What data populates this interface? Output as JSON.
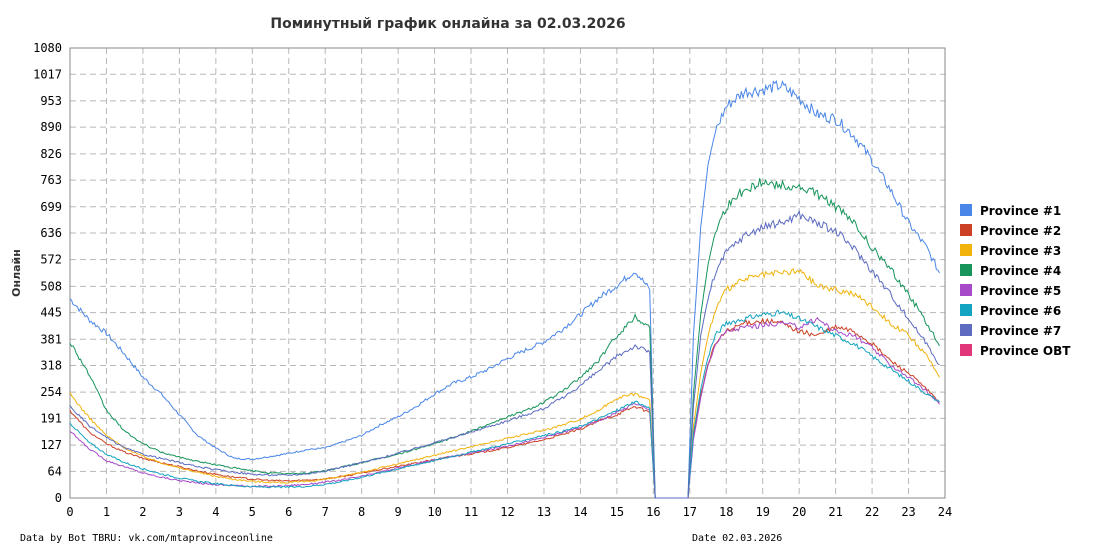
{
  "chart_data": {
    "type": "line",
    "title": "Поминутный график онлайна за 02.03.2026",
    "ylabel": "Онлайн",
    "xlabel": "",
    "xlim": [
      0,
      24
    ],
    "ylim": [
      0,
      1080
    ],
    "x_ticks": [
      "0",
      "1",
      "2",
      "3",
      "4",
      "5",
      "6",
      "7",
      "8",
      "9",
      "10",
      "11",
      "12",
      "13",
      "14",
      "15",
      "16",
      "17",
      "18",
      "19",
      "20",
      "21",
      "22",
      "23",
      "24"
    ],
    "y_ticks": [
      "0",
      "64",
      "127",
      "191",
      "254",
      "318",
      "381",
      "445",
      "508",
      "572",
      "636",
      "699",
      "763",
      "826",
      "890",
      "953",
      "1017",
      "1080"
    ],
    "grid": true,
    "legend_position": "right",
    "footer_left": "Data by Bot TBRU: vk.com/mtaprovinceonline",
    "footer_right": "Date 02.03.2026",
    "series": [
      {
        "name": "Province #1",
        "color": "#4a86e8",
        "x": [
          0,
          0.5,
          1,
          1.5,
          2,
          2.5,
          3,
          3.5,
          4,
          4.5,
          5,
          5.5,
          6,
          6.5,
          7,
          7.5,
          8,
          8.5,
          9,
          9.5,
          10,
          10.5,
          11,
          11.5,
          12,
          12.5,
          13,
          13.5,
          14,
          14.5,
          15,
          15.5,
          15.9,
          16.05,
          16.95,
          17.1,
          17.3,
          17.5,
          17.7,
          18,
          18.5,
          19,
          19.5,
          20,
          20.5,
          21,
          21.5,
          22,
          22.5,
          23,
          23.5,
          23.85
        ],
        "y": [
          478,
          430,
          395,
          345,
          290,
          250,
          200,
          150,
          120,
          95,
          93,
          100,
          107,
          116,
          120,
          135,
          150,
          175,
          195,
          220,
          250,
          275,
          290,
          310,
          335,
          355,
          375,
          405,
          440,
          480,
          510,
          545,
          500,
          0,
          0,
          390,
          650,
          800,
          880,
          940,
          975,
          980,
          990,
          960,
          920,
          910,
          870,
          810,
          740,
          660,
          600,
          540
        ]
      },
      {
        "name": "Province #2",
        "color": "#cc4125",
        "x": [
          0,
          0.5,
          1,
          1.5,
          2,
          2.5,
          3,
          3.5,
          4,
          4.5,
          5,
          5.5,
          6,
          6.5,
          7,
          7.5,
          8,
          8.5,
          9,
          9.5,
          10,
          10.5,
          11,
          11.5,
          12,
          12.5,
          13,
          13.5,
          14,
          14.5,
          15,
          15.5,
          15.9,
          16.05,
          16.95,
          17.1,
          17.3,
          17.5,
          17.7,
          18,
          18.5,
          19,
          19.5,
          20,
          20.5,
          21,
          21.5,
          22,
          22.5,
          23,
          23.5,
          23.85
        ],
        "y": [
          210,
          160,
          130,
          110,
          95,
          85,
          75,
          65,
          57,
          50,
          45,
          42,
          41,
          43,
          46,
          52,
          60,
          68,
          76,
          84,
          92,
          100,
          106,
          113,
          121,
          130,
          140,
          152,
          165,
          185,
          200,
          220,
          205,
          0,
          0,
          150,
          250,
          320,
          370,
          400,
          420,
          425,
          420,
          400,
          390,
          410,
          400,
          370,
          330,
          300,
          260,
          230
        ]
      },
      {
        "name": "Province #3",
        "color": "#f1b30c",
        "x": [
          0,
          0.5,
          1,
          1.5,
          2,
          2.5,
          3,
          3.5,
          4,
          4.5,
          5,
          5.5,
          6,
          6.5,
          7,
          7.5,
          8,
          8.5,
          9,
          9.5,
          10,
          10.5,
          11,
          11.5,
          12,
          12.5,
          13,
          13.5,
          14,
          14.5,
          15,
          15.5,
          15.9,
          16.05,
          16.95,
          17.1,
          17.3,
          17.5,
          17.7,
          18,
          18.5,
          19,
          19.5,
          20,
          20.5,
          21,
          21.5,
          22,
          22.5,
          23,
          23.5,
          23.85
        ],
        "y": [
          250,
          195,
          150,
          120,
          100,
          85,
          72,
          62,
          52,
          45,
          40,
          38,
          37,
          40,
          45,
          52,
          62,
          72,
          82,
          92,
          103,
          113,
          123,
          133,
          143,
          153,
          163,
          175,
          190,
          210,
          240,
          250,
          235,
          0,
          0,
          170,
          300,
          390,
          450,
          500,
          525,
          535,
          540,
          545,
          510,
          500,
          490,
          460,
          420,
          390,
          340,
          290
        ]
      },
      {
        "name": "Province #4",
        "color": "#16945a",
        "x": [
          0,
          0.5,
          1,
          1.5,
          2,
          2.5,
          3,
          3.5,
          4,
          4.5,
          5,
          5.5,
          6,
          6.5,
          7,
          7.5,
          8,
          8.5,
          9,
          9.5,
          10,
          10.5,
          11,
          11.5,
          12,
          12.5,
          13,
          13.5,
          14,
          14.5,
          15,
          15.5,
          15.9,
          16.05,
          16.95,
          17.1,
          17.3,
          17.5,
          17.7,
          18,
          18.5,
          19,
          19.5,
          20,
          20.5,
          21,
          21.5,
          22,
          22.5,
          23,
          23.5,
          23.85
        ],
        "y": [
          375,
          300,
          210,
          160,
          130,
          110,
          98,
          88,
          80,
          72,
          65,
          60,
          58,
          60,
          65,
          75,
          85,
          95,
          105,
          118,
          130,
          145,
          160,
          178,
          195,
          210,
          230,
          255,
          290,
          330,
          390,
          435,
          410,
          0,
          0,
          250,
          440,
          560,
          640,
          700,
          740,
          760,
          750,
          745,
          730,
          700,
          660,
          600,
          550,
          490,
          420,
          365
        ]
      },
      {
        "name": "Province #5",
        "color": "#a64ac9",
        "x": [
          0,
          0.5,
          1,
          1.5,
          2,
          2.5,
          3,
          3.5,
          4,
          4.5,
          5,
          5.5,
          6,
          6.5,
          7,
          7.5,
          8,
          8.5,
          9,
          9.5,
          10,
          10.5,
          11,
          11.5,
          12,
          12.5,
          13,
          13.5,
          14,
          14.5,
          15,
          15.5,
          15.9,
          16.05,
          16.95,
          17.1,
          17.3,
          17.5,
          17.7,
          18,
          18.5,
          19,
          19.5,
          20,
          20.5,
          21,
          21.5,
          22,
          22.5,
          23,
          23.5,
          23.85
        ],
        "y": [
          160,
          120,
          90,
          75,
          60,
          50,
          42,
          36,
          32,
          30,
          28,
          28,
          30,
          33,
          38,
          44,
          52,
          62,
          72,
          82,
          92,
          100,
          108,
          116,
          125,
          135,
          145,
          157,
          170,
          185,
          205,
          228,
          210,
          0,
          0,
          140,
          240,
          320,
          370,
          400,
          410,
          415,
          420,
          410,
          430,
          400,
          390,
          360,
          320,
          290,
          255,
          225
        ]
      },
      {
        "name": "Province #6",
        "color": "#12a4c0",
        "x": [
          0,
          0.5,
          1,
          1.5,
          2,
          2.5,
          3,
          3.5,
          4,
          4.5,
          5,
          5.5,
          6,
          6.5,
          7,
          7.5,
          8,
          8.5,
          9,
          9.5,
          10,
          10.5,
          11,
          11.5,
          12,
          12.5,
          13,
          13.5,
          14,
          14.5,
          15,
          15.5,
          15.9,
          16.05,
          16.95,
          17.1,
          17.3,
          17.5,
          17.7,
          18,
          18.5,
          19,
          19.5,
          20,
          20.5,
          21,
          21.5,
          22,
          22.5,
          23,
          23.5,
          23.85
        ],
        "y": [
          180,
          135,
          105,
          85,
          70,
          58,
          48,
          40,
          34,
          30,
          27,
          26,
          26,
          28,
          33,
          40,
          50,
          60,
          70,
          80,
          90,
          100,
          110,
          120,
          130,
          140,
          150,
          160,
          172,
          190,
          210,
          232,
          215,
          0,
          0,
          155,
          260,
          340,
          390,
          420,
          430,
          440,
          445,
          430,
          410,
          390,
          370,
          340,
          310,
          280,
          250,
          230
        ]
      },
      {
        "name": "Province #7",
        "color": "#5c6bc0",
        "x": [
          0,
          0.5,
          1,
          1.5,
          2,
          2.5,
          3,
          3.5,
          4,
          4.5,
          5,
          5.5,
          6,
          6.5,
          7,
          7.5,
          8,
          8.5,
          9,
          9.5,
          10,
          10.5,
          11,
          11.5,
          12,
          12.5,
          13,
          13.5,
          14,
          14.5,
          15,
          15.5,
          15.9,
          16.05,
          16.95,
          17.1,
          17.3,
          17.5,
          17.7,
          18,
          18.5,
          19,
          19.5,
          20,
          20.5,
          21,
          21.5,
          22,
          22.5,
          23,
          23.5,
          23.85
        ],
        "y": [
          220,
          175,
          145,
          120,
          105,
          95,
          85,
          75,
          68,
          62,
          57,
          55,
          55,
          58,
          65,
          75,
          85,
          95,
          108,
          120,
          133,
          145,
          158,
          172,
          185,
          200,
          215,
          240,
          270,
          305,
          340,
          365,
          350,
          0,
          0,
          220,
          390,
          480,
          540,
          590,
          630,
          650,
          660,
          680,
          660,
          640,
          600,
          545,
          490,
          430,
          370,
          320
        ]
      },
      {
        "name": "Province OBT",
        "color": "#e2367b",
        "x": [],
        "y": []
      }
    ]
  }
}
